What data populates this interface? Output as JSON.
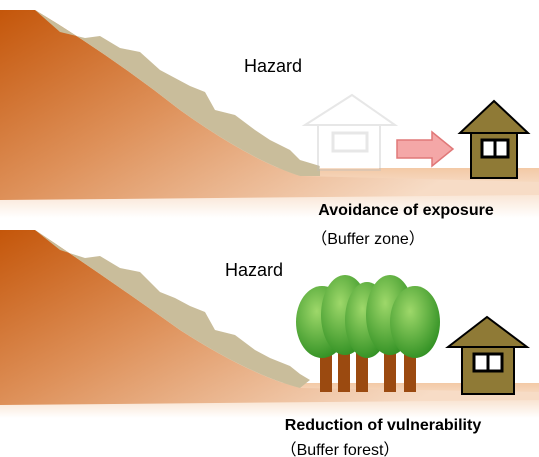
{
  "top_panel": {
    "hazard_label": "Hazard",
    "caption": "Avoidance of exposure",
    "subcaption": "（Buffer zone）"
  },
  "bottom_panel": {
    "hazard_label": "Hazard",
    "caption": "Reduction of vulnerability",
    "subcaption": "（Buffer forest）"
  }
}
